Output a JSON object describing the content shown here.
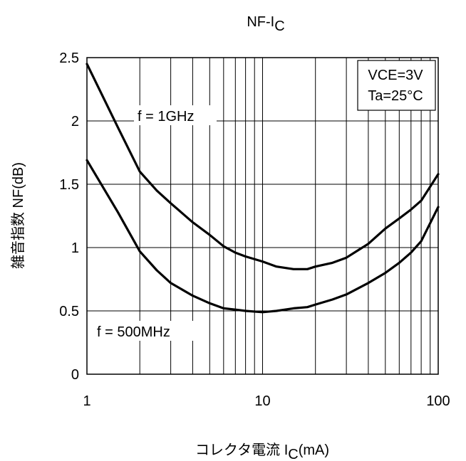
{
  "chart_data": {
    "type": "line",
    "title": "NF-I",
    "title_subscript": "C",
    "xlabel_prefix": "コレクタ電流 I",
    "xlabel_subscript": "C",
    "xlabel_suffix": "(mA)",
    "ylabel": "雑音指数 NF(dB)",
    "x_scale": "log",
    "xlim": [
      1,
      100
    ],
    "ylim": [
      0,
      2.5
    ],
    "x_ticks": [
      1,
      10,
      100
    ],
    "x_tick_labels": [
      "1",
      "10",
      "100"
    ],
    "y_ticks": [
      0,
      0.5,
      1,
      1.5,
      2,
      2.5
    ],
    "y_tick_labels": [
      "0",
      "0.5",
      "1",
      "1.5",
      "2",
      "2.5"
    ],
    "grid": true,
    "legend": "none",
    "conditions": [
      "VCE=3V",
      "Ta=25°C"
    ],
    "line_color": "#000000",
    "series": [
      {
        "name": "f = 1GHz",
        "x": [
          1,
          1.5,
          2,
          2.5,
          3,
          4,
          5,
          6,
          7,
          8,
          10,
          12,
          15,
          18,
          20,
          25,
          30,
          40,
          50,
          60,
          70,
          80,
          100
        ],
        "y": [
          2.45,
          1.95,
          1.6,
          1.45,
          1.35,
          1.2,
          1.1,
          1.01,
          0.96,
          0.93,
          0.89,
          0.85,
          0.83,
          0.83,
          0.85,
          0.88,
          0.92,
          1.03,
          1.15,
          1.23,
          1.3,
          1.37,
          1.58
        ]
      },
      {
        "name": "f = 500MHz",
        "x": [
          1,
          1.5,
          2,
          2.5,
          3,
          4,
          5,
          6,
          7,
          8,
          10,
          12,
          15,
          18,
          20,
          25,
          30,
          40,
          50,
          60,
          70,
          80,
          100
        ],
        "y": [
          1.69,
          1.28,
          0.97,
          0.82,
          0.72,
          0.62,
          0.56,
          0.52,
          0.51,
          0.5,
          0.49,
          0.5,
          0.52,
          0.53,
          0.55,
          0.59,
          0.63,
          0.72,
          0.8,
          0.88,
          0.96,
          1.05,
          1.32
        ]
      }
    ]
  }
}
